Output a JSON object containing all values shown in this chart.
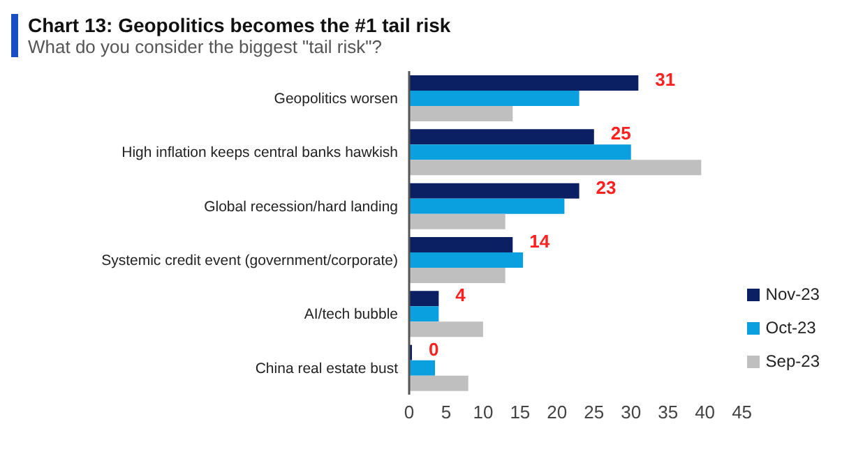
{
  "chart_data": {
    "type": "bar",
    "orientation": "horizontal",
    "title": "Chart 13: Geopolitics becomes the #1 tail risk",
    "subtitle": "What do you consider the biggest \"tail risk\"?",
    "categories": [
      "Geopolitics worsen",
      "High inflation keeps central banks hawkish",
      "Global recession/hard landing",
      "Systemic credit event (government/corporate)",
      "AI/tech bubble",
      "China real estate bust"
    ],
    "series": [
      {
        "name": "Nov-23",
        "color": "#0b2063",
        "values": [
          31,
          25,
          23,
          14,
          4,
          0
        ],
        "value_labels": [
          "31",
          "25",
          "23",
          "14",
          "4",
          "0"
        ]
      },
      {
        "name": "Oct-23",
        "color": "#0a9fdf",
        "values": [
          23,
          30,
          21,
          15.4,
          4,
          3.5
        ]
      },
      {
        "name": "Sep-23",
        "color": "#bfbfbf",
        "values": [
          14,
          39.5,
          13,
          13,
          10,
          8
        ]
      }
    ],
    "xlim": [
      0,
      45
    ],
    "xticks": [
      0,
      5,
      10,
      15,
      20,
      25,
      30,
      35,
      40,
      45
    ],
    "grid": false,
    "legend": "bottom right"
  }
}
